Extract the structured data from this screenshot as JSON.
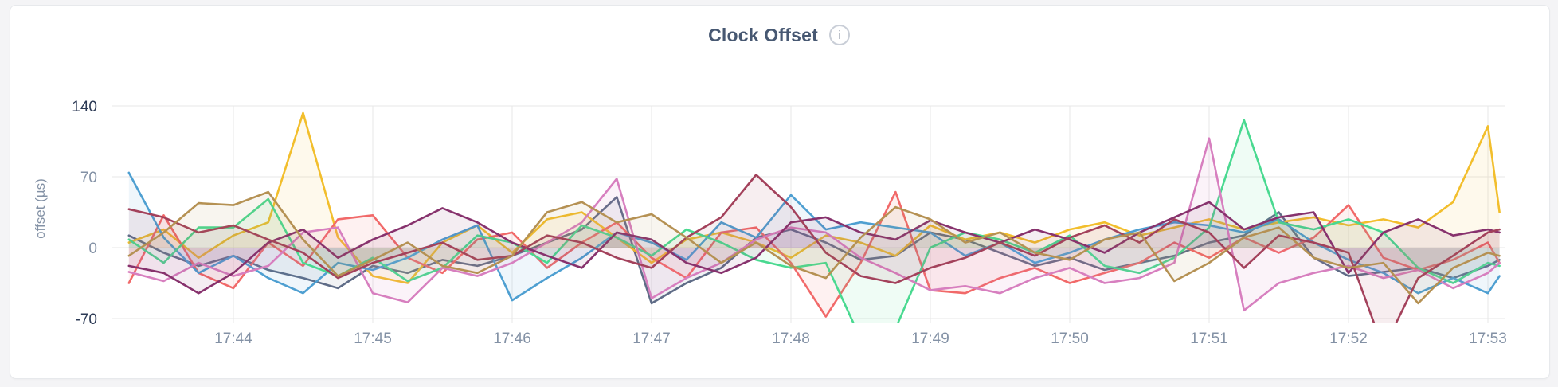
{
  "page": {
    "background": "#f4f4f6"
  },
  "card": {
    "background": "#ffffff",
    "border_color": "#e7e9ec"
  },
  "header": {
    "title": "Clock Offset",
    "info_icon_glyph": "i"
  },
  "axis_style": {
    "tick_color": "#8391a5",
    "tick_color_emphasized": "#2c3a55",
    "grid_color": "#e7e7e7"
  },
  "chart_data": {
    "type": "line",
    "title": "Clock Offset",
    "ylabel": "offset (µs)",
    "xlabel": "",
    "grid": true,
    "legend_position": "none",
    "y_ticks": [
      {
        "value": 140,
        "label": "140",
        "emphasized": true
      },
      {
        "value": 70,
        "label": "70",
        "emphasized": false
      },
      {
        "value": 0,
        "label": "0",
        "emphasized": false
      },
      {
        "value": -70,
        "label": "-70",
        "emphasized": true
      }
    ],
    "x_ticks": [
      "17:44",
      "17:45",
      "17:46",
      "17:47",
      "17:48",
      "17:49",
      "17:50",
      "17:51",
      "17:52",
      "17:53"
    ],
    "x_range": [
      "17:43:15",
      "17:53:05"
    ],
    "ylim_visible": [
      -74,
      167
    ],
    "times": [
      "17:43:15",
      "17:43:30",
      "17:43:45",
      "17:44:00",
      "17:44:15",
      "17:44:30",
      "17:44:45",
      "17:45:00",
      "17:45:15",
      "17:45:30",
      "17:45:45",
      "17:46:00",
      "17:46:15",
      "17:46:30",
      "17:46:45",
      "17:47:00",
      "17:47:15",
      "17:47:30",
      "17:47:45",
      "17:48:00",
      "17:48:15",
      "17:48:30",
      "17:48:45",
      "17:49:00",
      "17:49:15",
      "17:49:30",
      "17:49:45",
      "17:50:00",
      "17:50:15",
      "17:50:30",
      "17:50:45",
      "17:51:00",
      "17:51:15",
      "17:51:30",
      "17:51:45",
      "17:52:00",
      "17:52:15",
      "17:52:30",
      "17:52:45",
      "17:53:00",
      "17:53:05"
    ],
    "series": [
      {
        "name": "slate",
        "color": "#5F6C87",
        "values": [
          12,
          -5,
          -18,
          -8,
          -22,
          -30,
          -40,
          -18,
          -25,
          -12,
          -18,
          -8,
          5,
          18,
          50,
          -55,
          -35,
          -20,
          10,
          18,
          5,
          -12,
          -8,
          15,
          8,
          -5,
          -18,
          -10,
          -22,
          -15,
          -8,
          5,
          12,
          35,
          -10,
          -28,
          -24,
          -20,
          -30,
          -18,
          -12
        ]
      },
      {
        "name": "gold",
        "color": "#F2BE2C",
        "values": [
          5,
          18,
          -10,
          12,
          25,
          133,
          10,
          -28,
          -35,
          5,
          22,
          -5,
          28,
          35,
          10,
          -15,
          8,
          15,
          5,
          -10,
          12,
          5,
          -8,
          22,
          8,
          15,
          5,
          18,
          25,
          12,
          20,
          28,
          18,
          25,
          30,
          22,
          28,
          20,
          45,
          120,
          35
        ]
      },
      {
        "name": "coral",
        "color": "#F16969",
        "values": [
          -35,
          32,
          -25,
          -40,
          5,
          -18,
          28,
          32,
          -10,
          -25,
          8,
          15,
          -20,
          5,
          25,
          -10,
          -30,
          15,
          20,
          -15,
          -68,
          -15,
          55,
          -42,
          -45,
          -30,
          -20,
          -35,
          -25,
          -15,
          5,
          -10,
          10,
          -5,
          10,
          42,
          -10,
          -22,
          -12,
          5,
          -15
        ]
      },
      {
        "name": "blue",
        "color": "#4E9FD1",
        "values": [
          74,
          10,
          -25,
          -8,
          -30,
          -45,
          -15,
          -22,
          -10,
          8,
          22,
          -52,
          -30,
          -10,
          15,
          5,
          -12,
          25,
          10,
          52,
          18,
          25,
          20,
          15,
          -8,
          5,
          -15,
          -5,
          8,
          18,
          25,
          22,
          15,
          28,
          5,
          -12,
          -25,
          -45,
          -30,
          -45,
          -28
        ]
      },
      {
        "name": "green",
        "color": "#49D990",
        "values": [
          8,
          -15,
          20,
          20,
          48,
          -15,
          -28,
          -10,
          -33,
          -20,
          12,
          5,
          -15,
          22,
          10,
          -8,
          18,
          5,
          -12,
          -20,
          -15,
          -90,
          -80,
          0,
          15,
          8,
          -5,
          12,
          -18,
          -25,
          -10,
          20,
          126,
          25,
          18,
          28,
          15,
          -20,
          -35,
          -15,
          -18
        ]
      },
      {
        "name": "orchid",
        "color": "#D77FBF",
        "values": [
          -24,
          -33,
          -15,
          -28,
          -18,
          15,
          20,
          -45,
          -54,
          -20,
          -28,
          -15,
          5,
          25,
          68,
          -50,
          -30,
          -15,
          8,
          20,
          15,
          -10,
          -25,
          -42,
          -38,
          -45,
          -30,
          -20,
          -35,
          -30,
          -15,
          108,
          -62,
          -35,
          -25,
          -18,
          -30,
          -22,
          -40,
          -25,
          -15
        ]
      },
      {
        "name": "plum",
        "color": "#87326D",
        "values": [
          -18,
          -25,
          -45,
          -25,
          5,
          18,
          -10,
          8,
          22,
          39,
          25,
          5,
          -8,
          -20,
          15,
          8,
          -15,
          -25,
          -10,
          25,
          30,
          15,
          8,
          27,
          15,
          5,
          18,
          8,
          -5,
          15,
          30,
          45,
          18,
          30,
          35,
          -25,
          15,
          28,
          12,
          18,
          15
        ]
      },
      {
        "name": "maroon",
        "color": "#A3415B",
        "values": [
          38,
          30,
          15,
          22,
          8,
          -5,
          -30,
          -15,
          -5,
          5,
          -12,
          -8,
          12,
          5,
          -10,
          -20,
          10,
          30,
          72,
          40,
          -5,
          -28,
          -35,
          -20,
          -10,
          5,
          -8,
          10,
          22,
          5,
          28,
          15,
          -20,
          12,
          5,
          -5,
          -100,
          -30,
          -8,
          15,
          18
        ]
      },
      {
        "name": "tan",
        "color": "#B59153",
        "values": [
          -8,
          15,
          44,
          42,
          55,
          8,
          -28,
          -12,
          5,
          -18,
          -25,
          -8,
          35,
          45,
          25,
          33,
          10,
          -15,
          5,
          -18,
          -30,
          10,
          40,
          28,
          5,
          15,
          -5,
          -12,
          8,
          15,
          -33,
          -15,
          10,
          20,
          -10,
          -20,
          -15,
          -55,
          -20,
          -5,
          -8
        ]
      }
    ]
  }
}
